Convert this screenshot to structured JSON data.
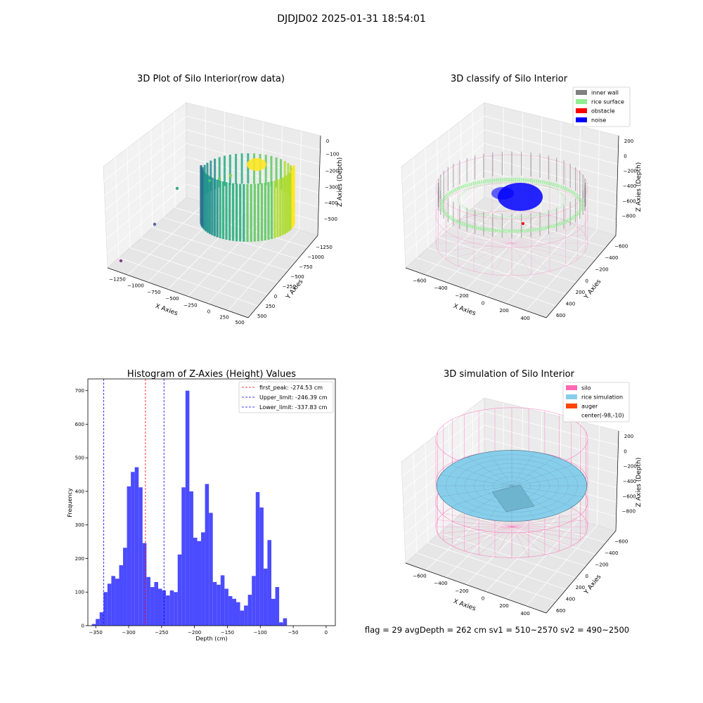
{
  "suptitle": "DJDJD02 2025-01-31 18:54:01",
  "footer": "flag = 29  avgDepth = 262 cm  sv1 = 510~2570  sv2 = 490~2500",
  "colors": {
    "histogram_bar": "#4b4bff",
    "first_peak_line": "#ff0000",
    "limit_lines": "#0000ff",
    "inner_wall": "#808080",
    "rice_surface": "#90ee90",
    "obstacle": "#ff0000",
    "noise": "#0000ff",
    "silo": "#ff69b4",
    "rice_simulation": "#87ceeb",
    "auger": "#ff4500"
  },
  "panel_raw": {
    "title": "3D Plot of Silo Interior(row data)",
    "xlabel": "X Axies",
    "ylabel": "Y Axies",
    "zlabel": "Z Axies (Depth)",
    "xticks": [
      "−1250",
      "−1000",
      "−750",
      "−500",
      "−250",
      "0",
      "250",
      "500"
    ],
    "yticks": [
      "500",
      "250",
      "0",
      "−250",
      "−500",
      "−750",
      "−1000",
      "−1250"
    ],
    "zticks": [
      "0",
      "−100",
      "−200",
      "−300",
      "−400",
      "−500"
    ]
  },
  "panel_classify": {
    "title": "3D classify of Silo Interior",
    "xlabel": "X Axies",
    "ylabel": "Y Axies",
    "zlabel": "Z Axies (Depth)",
    "xticks": [
      "−600",
      "−400",
      "−200",
      "0",
      "200",
      "400"
    ],
    "yticks": [
      "600",
      "400",
      "200",
      "0",
      "−200",
      "−400",
      "−600"
    ],
    "zticks": [
      "200",
      "0",
      "−200",
      "−400",
      "−600",
      "−800"
    ],
    "legend": [
      "inner wall",
      "rice surface",
      "obstacle",
      "noise"
    ]
  },
  "panel_sim": {
    "title": "3D simulation of Silo Interior",
    "xlabel": "X Axies",
    "ylabel": "Y Axies",
    "zlabel": "Z Axies (Depth)",
    "xticks": [
      "−600",
      "−400",
      "−200",
      "0",
      "200",
      "400"
    ],
    "yticks": [
      "600",
      "400",
      "200",
      "0",
      "−200",
      "−400",
      "−600"
    ],
    "zticks": [
      "200",
      "0",
      "−200",
      "−400",
      "−600",
      "−800"
    ],
    "legend": [
      "silo",
      "rice simulation",
      "auger",
      "center(-98,-10)"
    ]
  },
  "chart_data": [
    {
      "type": "bar",
      "title": "Histogram of Z-Axies (Height) Values",
      "xlabel": "Depth (cm)",
      "ylabel": "Frequency",
      "xlim": [
        -362,
        14
      ],
      "ylim": [
        0,
        735
      ],
      "xticks": [
        -350,
        -300,
        -250,
        -200,
        -150,
        -100,
        -50,
        0
      ],
      "xtick_labels": [
        "−350",
        "−300",
        "−250",
        "−200",
        "−150",
        "−100",
        "−50",
        "0"
      ],
      "yticks": [
        0,
        100,
        200,
        300,
        400,
        500,
        600,
        700
      ],
      "bin_start": -356,
      "bin_width": 5.93,
      "counts": [
        5,
        20,
        40,
        100,
        125,
        148,
        140,
        180,
        232,
        415,
        458,
        472,
        412,
        246,
        145,
        115,
        130,
        110,
        105,
        90,
        105,
        100,
        212,
        412,
        700,
        400,
        262,
        252,
        278,
        422,
        336,
        130,
        122,
        150,
        110,
        88,
        80,
        70,
        45,
        60,
        92,
        148,
        398,
        352,
        170,
        255,
        80,
        115,
        10,
        22
      ],
      "lines": [
        {
          "name": "first_peak: -274.53 cm",
          "x": -274.53,
          "style": "dashed"
        },
        {
          "name": "Upper_limit: -246.39 cm",
          "x": -246.39,
          "style": "dashed"
        },
        {
          "name": "Lower_limit: -337.83 cm",
          "x": -337.83,
          "style": "dashed"
        }
      ],
      "legend_position": "top-right"
    }
  ]
}
